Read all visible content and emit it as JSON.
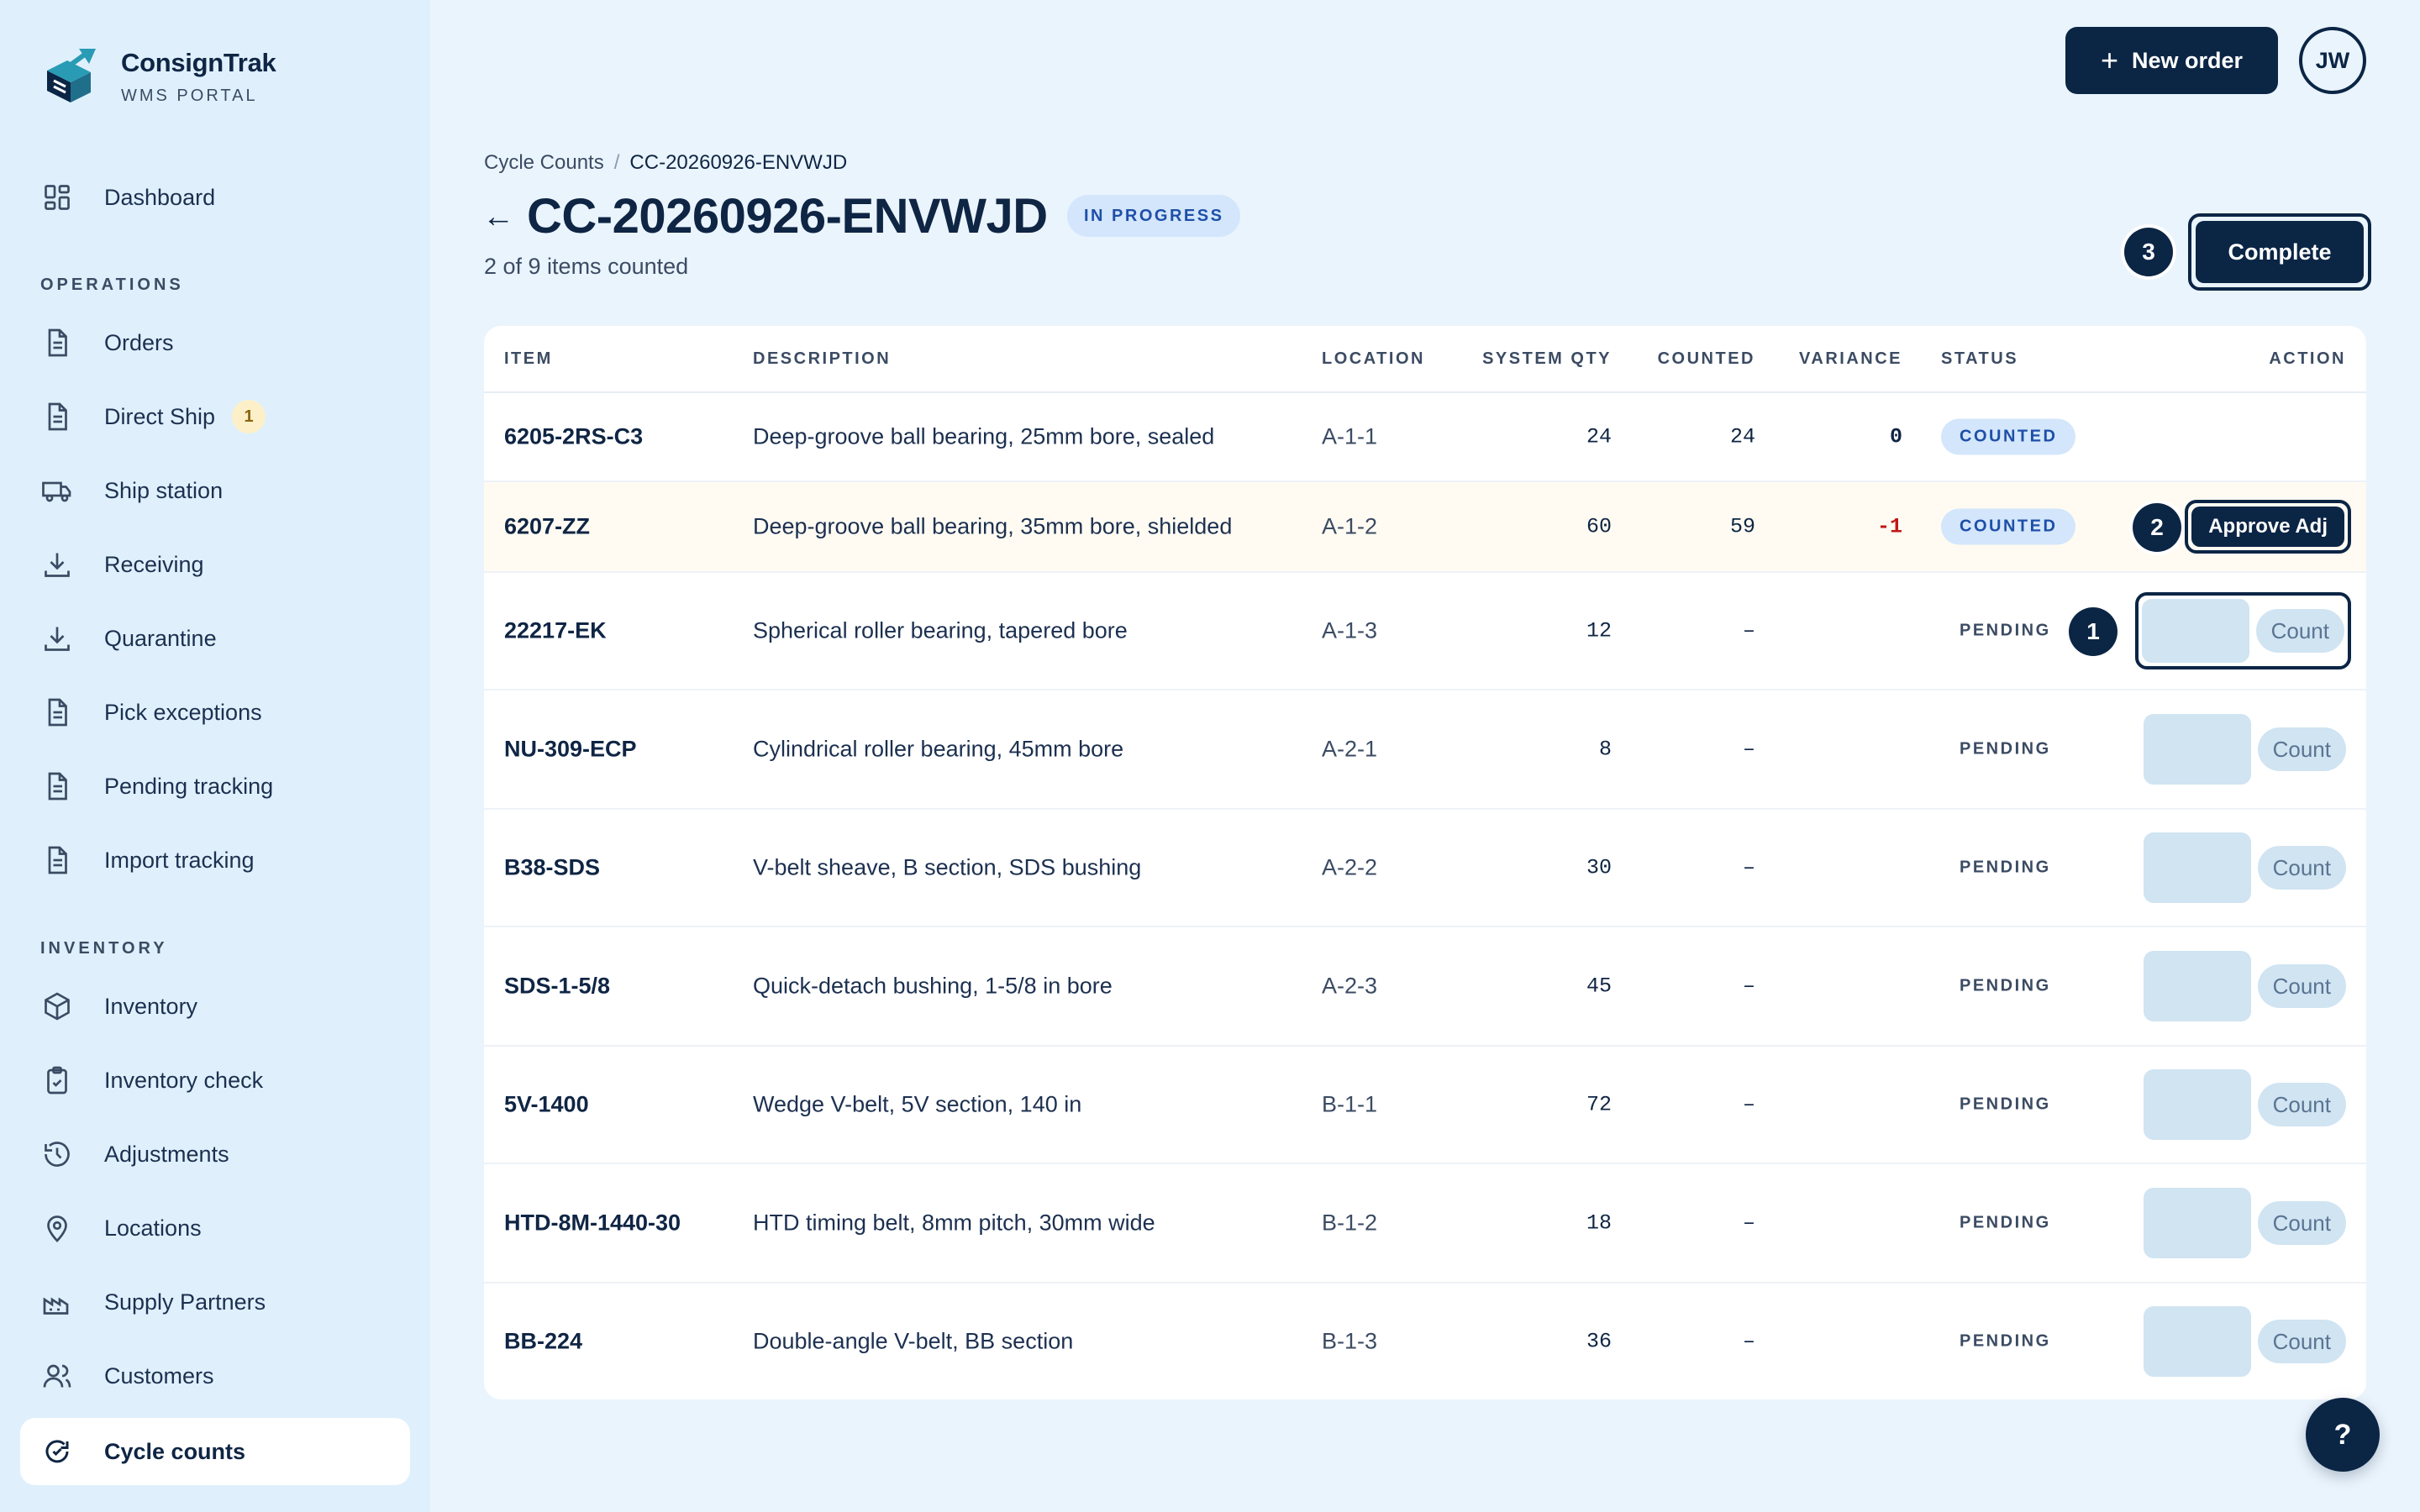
{
  "brand": {
    "name": "ConsignTrak",
    "subtitle": "WMS PORTAL"
  },
  "sidebar": {
    "dashboard": "Dashboard",
    "operations_heading": "OPERATIONS",
    "operations": [
      {
        "label": "Orders",
        "icon": "document-icon"
      },
      {
        "label": "Direct Ship",
        "icon": "document-icon",
        "badge": "1"
      },
      {
        "label": "Ship station",
        "icon": "truck-icon"
      },
      {
        "label": "Receiving",
        "icon": "download-icon"
      },
      {
        "label": "Quarantine",
        "icon": "download-icon"
      },
      {
        "label": "Pick exceptions",
        "icon": "document-icon"
      },
      {
        "label": "Pending tracking",
        "icon": "document-icon"
      },
      {
        "label": "Import tracking",
        "icon": "document-icon"
      }
    ],
    "inventory_heading": "INVENTORY",
    "inventory": [
      {
        "label": "Inventory",
        "icon": "box-icon"
      },
      {
        "label": "Inventory check",
        "icon": "clipboard-check-icon"
      },
      {
        "label": "Adjustments",
        "icon": "history-icon"
      },
      {
        "label": "Locations",
        "icon": "map-pin-icon"
      },
      {
        "label": "Supply Partners",
        "icon": "factory-icon"
      },
      {
        "label": "Customers",
        "icon": "users-icon"
      },
      {
        "label": "Cycle counts",
        "icon": "refresh-check-icon",
        "active": true
      }
    ]
  },
  "topbar": {
    "new_order": "New order",
    "avatar": "JW"
  },
  "header": {
    "breadcrumb_root": "Cycle Counts",
    "breadcrumb_sep": "/",
    "breadcrumb_current": "CC-20260926-ENVWJD",
    "back": "←",
    "title": "CC-20260926-ENVWJD",
    "status": "IN PROGRESS",
    "subtitle": "2 of 9 items counted",
    "complete": "Complete"
  },
  "steps": {
    "one": "1",
    "two": "2",
    "three": "3"
  },
  "table": {
    "columns": {
      "item": "ITEM",
      "description": "DESCRIPTION",
      "location": "LOCATION",
      "system_qty": "SYSTEM QTY",
      "counted": "COUNTED",
      "variance": "VARIANCE",
      "status": "STATUS",
      "action": "ACTION"
    },
    "rows": [
      {
        "item": "6205-2RS-C3",
        "description": "Deep-groove ball bearing, 25mm bore, sealed",
        "location": "A-1-1",
        "system_qty": "24",
        "counted": "24",
        "variance": "0",
        "status": "COUNTED"
      },
      {
        "item": "6207-ZZ",
        "description": "Deep-groove ball bearing, 35mm bore, shielded",
        "location": "A-1-2",
        "system_qty": "60",
        "counted": "59",
        "variance": "-1",
        "status": "COUNTED",
        "action": "Approve Adj"
      },
      {
        "item": "22217-EK",
        "description": "Spherical roller bearing, tapered bore",
        "location": "A-1-3",
        "system_qty": "12",
        "counted": "–",
        "variance": "",
        "status": "PENDING",
        "action": "Count"
      },
      {
        "item": "NU-309-ECP",
        "description": "Cylindrical roller bearing, 45mm bore",
        "location": "A-2-1",
        "system_qty": "8",
        "counted": "–",
        "variance": "",
        "status": "PENDING",
        "action": "Count"
      },
      {
        "item": "B38-SDS",
        "description": "V-belt sheave, B section, SDS bushing",
        "location": "A-2-2",
        "system_qty": "30",
        "counted": "–",
        "variance": "",
        "status": "PENDING",
        "action": "Count"
      },
      {
        "item": "SDS-1-5/8",
        "description": "Quick-detach bushing, 1-5/8 in bore",
        "location": "A-2-3",
        "system_qty": "45",
        "counted": "–",
        "variance": "",
        "status": "PENDING",
        "action": "Count"
      },
      {
        "item": "5V-1400",
        "description": "Wedge V-belt, 5V section, 140 in",
        "location": "B-1-1",
        "system_qty": "72",
        "counted": "–",
        "variance": "",
        "status": "PENDING",
        "action": "Count"
      },
      {
        "item": "HTD-8M-1440-30",
        "description": "HTD timing belt, 8mm pitch, 30mm wide",
        "location": "B-1-2",
        "system_qty": "18",
        "counted": "–",
        "variance": "",
        "status": "PENDING",
        "action": "Count"
      },
      {
        "item": "BB-224",
        "description": "Double-angle V-belt, BB section",
        "location": "B-1-3",
        "system_qty": "36",
        "counted": "–",
        "variance": "",
        "status": "PENDING",
        "action": "Count"
      }
    ]
  },
  "help": "?",
  "colors": {
    "primary": "#0b2545",
    "sidebar_bg": "#dff0fc",
    "page_bg": "#eaf4fc",
    "negative": "#c01616",
    "pill_bg": "#d3e6fb"
  }
}
